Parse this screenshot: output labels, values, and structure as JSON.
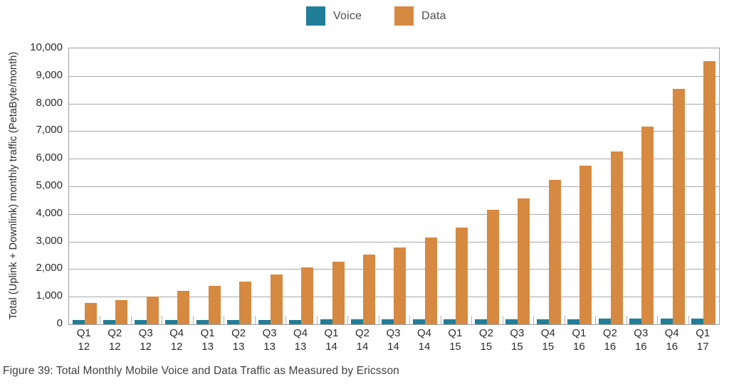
{
  "figure": {
    "caption": "Figure 39: Total Monthly Mobile Voice and Data Traffic as Measured by Ericsson"
  },
  "chart_data": {
    "type": "bar",
    "title": "",
    "xlabel": "",
    "ylabel": "Total (Uplink + Downlink) monthly traffic (PetaByte/month)",
    "ylim": [
      0,
      10000
    ],
    "ytick_step": 1000,
    "y_tick_labels": [
      "0",
      "1,000",
      "2,000",
      "3,000",
      "4,000",
      "5,000",
      "6,000",
      "7,000",
      "8,000",
      "9,000",
      "10,000"
    ],
    "grid": true,
    "legend_position": "top-center",
    "categories": [
      "Q1 12",
      "Q2 12",
      "Q3 12",
      "Q4 12",
      "Q1 13",
      "Q2 13",
      "Q3 13",
      "Q4 13",
      "Q1 14",
      "Q2 14",
      "Q3 14",
      "Q4 14",
      "Q1 15",
      "Q2 15",
      "Q3 15",
      "Q4 15",
      "Q1 16",
      "Q2 16",
      "Q3 16",
      "Q4 16",
      "Q1 17"
    ],
    "series": [
      {
        "name": "Voice",
        "color": "#207e99",
        "values": [
          150,
          155,
          155,
          160,
          160,
          160,
          165,
          165,
          170,
          170,
          175,
          175,
          180,
          180,
          185,
          190,
          190,
          195,
          200,
          205,
          215
        ]
      },
      {
        "name": "Data",
        "color": "#d68940",
        "values": [
          780,
          880,
          1000,
          1210,
          1390,
          1550,
          1800,
          2060,
          2270,
          2530,
          2780,
          3140,
          3500,
          4150,
          4560,
          5230,
          5750,
          6260,
          7160,
          8530,
          9540
        ]
      }
    ]
  },
  "colors": {
    "background": "#ffffff",
    "grid": "#a7a9ac",
    "plot_border": "#9b9da0",
    "tick_separator": "#b3b5b7",
    "axis_text": "#2b2b2d",
    "legend_text": "#4d4e50",
    "caption_text": "#3f4041"
  }
}
